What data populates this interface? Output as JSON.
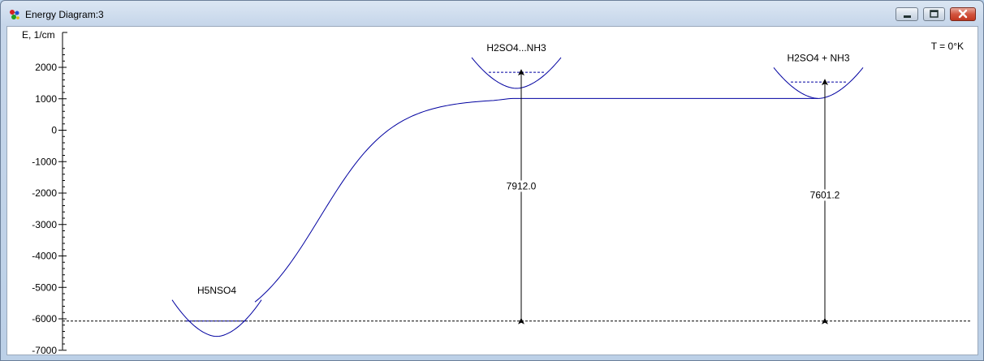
{
  "window": {
    "title": "Energy Diagram:3",
    "icon": "molecule-icon",
    "controls": [
      "minimize-icon",
      "maximize-icon",
      "close-icon"
    ]
  },
  "diagram": {
    "yaxis_label": "E, 1/cm",
    "temperature_label": "T = 0°K",
    "colors": {
      "curve": "#0000a0",
      "axis": "#000000",
      "reference": "#000000"
    },
    "yaxis_ticks": [
      2000,
      1000,
      0,
      -1000,
      -2000,
      -3000,
      -4000,
      -5000,
      -6000,
      -7000
    ],
    "yrange": [
      -7000,
      2700
    ],
    "reference_level": -6070,
    "species": [
      {
        "name": "H5NSO4",
        "min_energy": -6560,
        "zpe_level": -6070
      },
      {
        "name": "H2SO4...NH3",
        "min_energy": 1330,
        "zpe_level": 1842
      },
      {
        "name": "H2SO4 + NH3",
        "min_energy": 1010,
        "zpe_level": 1531
      }
    ],
    "transitions": [
      {
        "from": "H5NSO4",
        "to": "H2SO4...NH3",
        "label": "7912.0"
      },
      {
        "from": "H5NSO4",
        "to": "H2SO4 + NH3",
        "label": "7601.2"
      }
    ]
  }
}
